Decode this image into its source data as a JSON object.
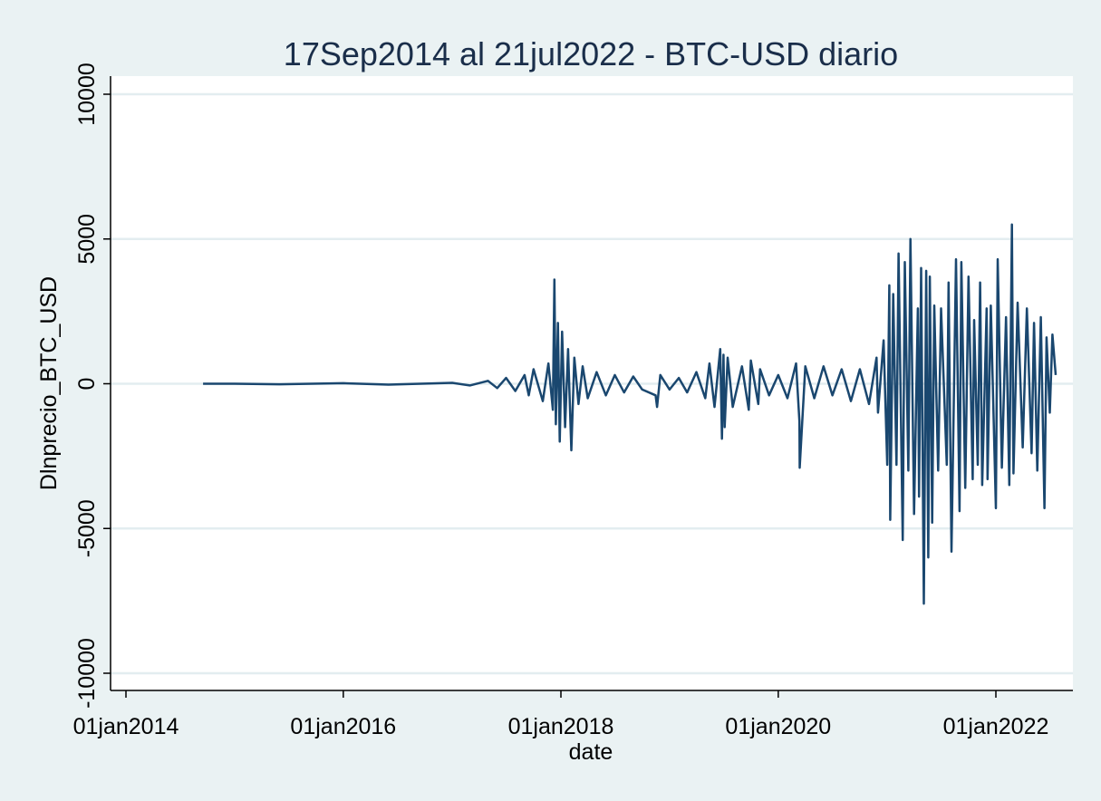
{
  "chart_data": {
    "type": "line",
    "title": "17Sep2014 al 21jul2022 - BTC-USD diario",
    "xlabel": "date",
    "ylabel": "Dlnprecio_BTC_USD",
    "xlim": [
      "2014-01-01",
      "2022-09-30"
    ],
    "ylim": [
      -10000,
      10000
    ],
    "x_ticks": [
      "2014-01-01",
      "2016-01-01",
      "2018-01-01",
      "2020-01-01",
      "2022-01-01"
    ],
    "x_tick_labels": [
      "01jan2014",
      "01jan2016",
      "01jan2018",
      "01jan2020",
      "01jan2022"
    ],
    "y_ticks": [
      -10000,
      -5000,
      0,
      5000,
      10000
    ],
    "y_tick_labels": [
      "-10000",
      "-5000",
      "0",
      "5000",
      "10000"
    ],
    "grid": "horizontal",
    "legend": "none",
    "colors": {
      "line": "#1a476f",
      "plot_bg": "#ffffff",
      "page_bg": "#eaf2f3",
      "grid": "#e3edf0"
    },
    "series": [
      {
        "x": [
          "2014-09-17",
          "2015-01-01",
          "2015-06-01",
          "2016-01-01",
          "2016-06-01",
          "2017-01-01",
          "2017-03-01",
          "2017-05-01",
          "2017-06-01",
          "2017-07-01",
          "2017-08-01",
          "2017-09-01",
          "2017-09-15",
          "2017-10-01",
          "2017-11-01",
          "2017-11-20",
          "2017-12-05",
          "2017-12-10",
          "2017-12-15",
          "2017-12-22",
          "2017-12-28",
          "2018-01-05",
          "2018-01-15",
          "2018-01-25",
          "2018-02-05",
          "2018-02-15",
          "2018-03-01",
          "2018-03-15",
          "2018-04-01",
          "2018-05-01",
          "2018-06-01",
          "2018-07-01",
          "2018-08-01",
          "2018-09-01",
          "2018-10-01",
          "2018-11-15",
          "2018-11-20",
          "2018-12-01",
          "2019-01-01",
          "2019-02-01",
          "2019-03-01",
          "2019-04-01",
          "2019-05-01",
          "2019-05-15",
          "2019-06-01",
          "2019-06-20",
          "2019-06-26",
          "2019-07-01",
          "2019-07-05",
          "2019-07-15",
          "2019-08-01",
          "2019-09-01",
          "2019-09-24",
          "2019-10-01",
          "2019-10-26",
          "2019-11-01",
          "2019-12-01",
          "2020-01-01",
          "2020-02-01",
          "2020-03-01",
          "2020-03-12",
          "2020-03-13",
          "2020-04-01",
          "2020-05-01",
          "2020-06-01",
          "2020-07-01",
          "2020-08-01",
          "2020-09-01",
          "2020-10-01",
          "2020-11-01",
          "2020-11-26",
          "2020-12-01",
          "2020-12-20",
          "2021-01-01",
          "2021-01-08",
          "2021-01-11",
          "2021-01-21",
          "2021-02-01",
          "2021-02-08",
          "2021-02-22",
          "2021-03-01",
          "2021-03-13",
          "2021-03-20",
          "2021-04-01",
          "2021-04-14",
          "2021-04-18",
          "2021-04-25",
          "2021-05-04",
          "2021-05-12",
          "2021-05-19",
          "2021-05-24",
          "2021-06-01",
          "2021-06-08",
          "2021-06-21",
          "2021-07-01",
          "2021-07-20",
          "2021-07-26",
          "2021-08-05",
          "2021-08-20",
          "2021-09-01",
          "2021-09-07",
          "2021-09-20",
          "2021-10-01",
          "2021-10-15",
          "2021-10-20",
          "2021-11-01",
          "2021-11-09",
          "2021-11-16",
          "2021-12-01",
          "2021-12-04",
          "2021-12-15",
          "2022-01-01",
          "2022-01-07",
          "2022-01-21",
          "2022-02-04",
          "2022-02-15",
          "2022-02-24",
          "2022-03-01",
          "2022-03-15",
          "2022-04-01",
          "2022-04-15",
          "2022-05-01",
          "2022-05-09",
          "2022-05-20",
          "2022-06-01",
          "2022-06-13",
          "2022-06-20",
          "2022-07-01",
          "2022-07-10",
          "2022-07-21"
        ],
        "values": [
          0,
          0,
          -20,
          20,
          -30,
          30,
          -60,
          100,
          -150,
          200,
          -250,
          300,
          -400,
          500,
          -600,
          700,
          -900,
          3600,
          -1400,
          2100,
          -2000,
          1800,
          -1500,
          1200,
          -2300,
          900,
          -700,
          600,
          -500,
          400,
          -400,
          300,
          -300,
          250,
          -200,
          -400,
          -800,
          300,
          -200,
          200,
          -300,
          400,
          -500,
          700,
          -800,
          1200,
          -1900,
          1000,
          -1500,
          900,
          -800,
          600,
          -900,
          800,
          -700,
          500,
          -400,
          300,
          -500,
          700,
          -1300,
          -2900,
          600,
          -500,
          600,
          -400,
          500,
          -600,
          500,
          -700,
          900,
          -1000,
          1500,
          -2800,
          3400,
          -4700,
          3100,
          -2800,
          4500,
          -5400,
          4200,
          -3000,
          5000,
          -4500,
          2600,
          -3900,
          4000,
          -7600,
          3900,
          -6000,
          3700,
          -4800,
          2700,
          -3000,
          2600,
          -2800,
          3500,
          -5800,
          4300,
          -4400,
          4200,
          -3600,
          3700,
          -3300,
          2200,
          -2800,
          3500,
          -3500,
          2600,
          -3300,
          2700,
          -4300,
          4300,
          -2900,
          2300,
          -3500,
          5500,
          -3100,
          2800,
          -2200,
          2600,
          -2400,
          2100,
          -3000,
          2300,
          -4300,
          1600,
          -1000,
          1700,
          300
        ]
      }
    ]
  }
}
